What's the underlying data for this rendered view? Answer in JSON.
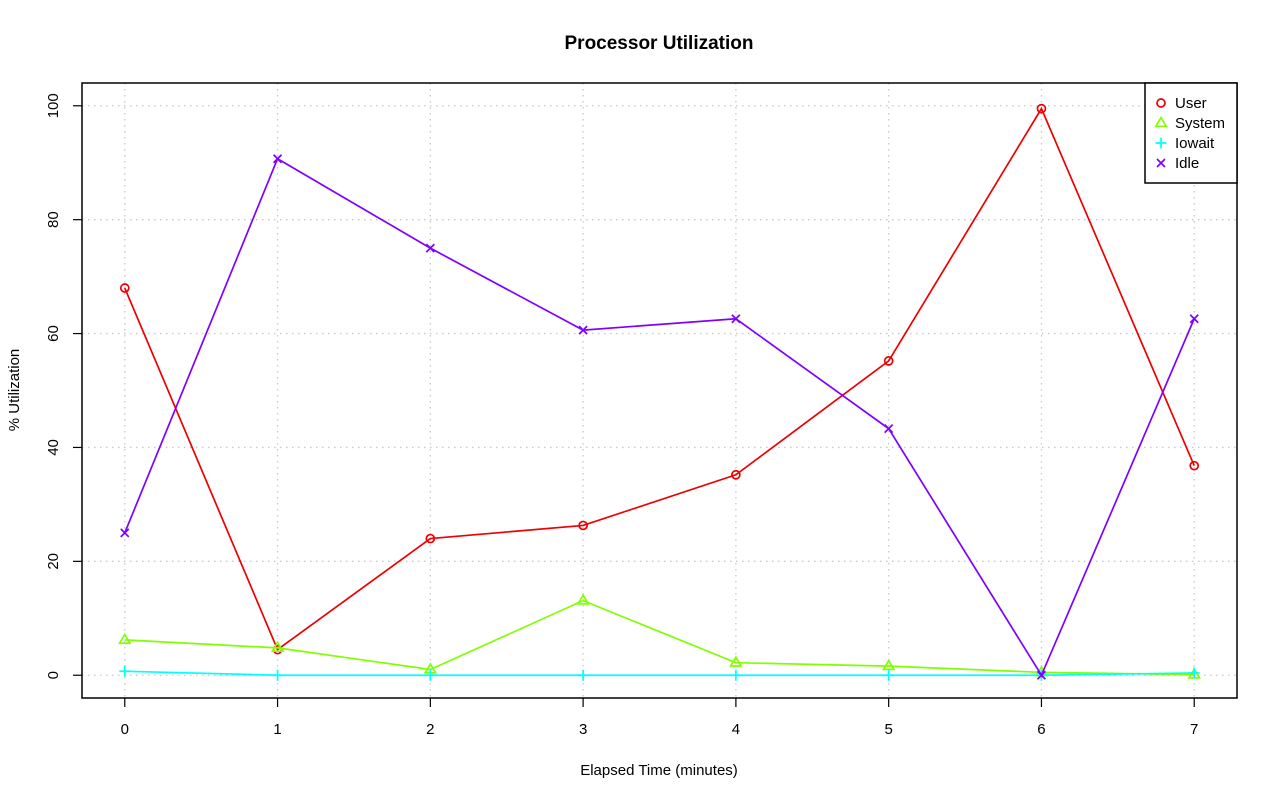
{
  "chart_data": {
    "type": "line",
    "title": "Processor Utilization",
    "xlabel": "Elapsed Time (minutes)",
    "ylabel": "% Utilization",
    "x": [
      0,
      1,
      2,
      3,
      4,
      5,
      6,
      7
    ],
    "xticks": [
      "0",
      "1",
      "2",
      "3",
      "4",
      "5",
      "6",
      "7"
    ],
    "yticks": [
      "0",
      "20",
      "40",
      "60",
      "80",
      "100"
    ],
    "xlim": [
      -0.28,
      7.28
    ],
    "ylim": [
      -4,
      104
    ],
    "grid": true,
    "legend_position": "top-right",
    "series": [
      {
        "name": "User",
        "color": "#ee0000",
        "marker": "circle",
        "values": [
          68.0,
          4.5,
          24.0,
          26.3,
          35.2,
          55.2,
          99.5,
          36.8
        ]
      },
      {
        "name": "System",
        "color": "#80ff00",
        "marker": "triangle",
        "values": [
          6.2,
          4.8,
          1.0,
          13.1,
          2.2,
          1.6,
          0.5,
          0.1
        ]
      },
      {
        "name": "Iowait",
        "color": "#00ffff",
        "marker": "plus",
        "values": [
          0.7,
          0.0,
          0.0,
          0.0,
          0.0,
          0.0,
          0.0,
          0.4
        ]
      },
      {
        "name": "Idle",
        "color": "#8000ff",
        "marker": "cross",
        "values": [
          25.0,
          90.7,
          75.0,
          60.6,
          62.6,
          43.3,
          0.0,
          62.6
        ]
      }
    ]
  }
}
